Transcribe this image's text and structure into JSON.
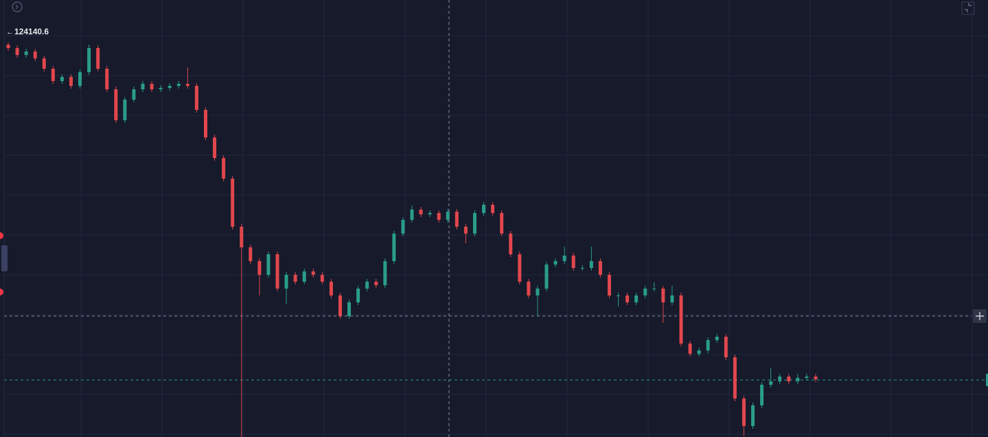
{
  "chart_data": {
    "type": "candlestick",
    "open": [
      124131,
      124116,
      124086,
      124101,
      124071,
      124026,
      123972,
      123990,
      123951,
      124011,
      124116,
      124026,
      123936,
      123801,
      123891,
      123936,
      123960,
      123936,
      123942,
      123951,
      123960,
      123951,
      123846,
      123726,
      123636,
      123546,
      123336,
      123246,
      123186,
      123126,
      123216,
      123066,
      123126,
      123096,
      123141,
      123126,
      123096,
      123036,
      122946,
      123006,
      123066,
      123096,
      123081,
      123186,
      123306,
      123366,
      123411,
      123390,
      123396,
      123366,
      123402,
      123336,
      123306,
      123396,
      123432,
      123396,
      123306,
      123216,
      123096,
      123036,
      123066,
      123171,
      123186,
      123210,
      123156,
      123156,
      123186,
      123126,
      123036,
      123036,
      123006,
      123036,
      123066,
      123066,
      123006,
      123036,
      122826,
      122781,
      122796,
      122841,
      122856,
      122766,
      122586,
      122466,
      122556,
      122646,
      122661,
      122682,
      122661,
      122676,
      122682
    ],
    "high": [
      124140.6,
      124128,
      124113,
      124113,
      124083,
      124038,
      124002,
      124002,
      124023,
      124131,
      124128,
      124038,
      123948,
      123903,
      123948,
      123972,
      123972,
      123954,
      123963,
      123972,
      124032,
      123963,
      123858,
      123738,
      123648,
      123558,
      123348,
      123258,
      123198,
      123228,
      123228,
      123138,
      123138,
      123153,
      123153,
      123138,
      123108,
      123048,
      123018,
      123078,
      123108,
      123108,
      123198,
      123318,
      123378,
      123429,
      123423,
      123408,
      123408,
      123414,
      123414,
      123348,
      123408,
      123444,
      123444,
      123408,
      123318,
      123228,
      123108,
      123078,
      123183,
      123198,
      123249,
      123222,
      123168,
      123249,
      123198,
      123138,
      123048,
      123048,
      123048,
      123078,
      123093,
      123078,
      123078,
      123048,
      122838,
      122808,
      122853,
      122868,
      122868,
      122778,
      122598,
      122568,
      122658,
      122721,
      122694,
      122694,
      122694,
      122694,
      122694
    ],
    "low": [
      124104,
      124074,
      124074,
      124059,
      124014,
      123960,
      123960,
      123939,
      123939,
      123999,
      124014,
      123924,
      123789,
      123789,
      123879,
      123924,
      123924,
      123924,
      123930,
      123939,
      123939,
      123834,
      123714,
      123624,
      123534,
      123324,
      122418,
      123174,
      123036,
      123114,
      123054,
      123000,
      123084,
      123084,
      123114,
      123084,
      123024,
      122934,
      122934,
      122994,
      123054,
      123069,
      123069,
      123174,
      123294,
      123354,
      123378,
      123378,
      123354,
      123354,
      123324,
      123264,
      123294,
      123384,
      123384,
      123294,
      123204,
      123084,
      123024,
      122946,
      123054,
      123159,
      123174,
      123144,
      123144,
      123144,
      123114,
      123024,
      122988,
      122994,
      122994,
      123024,
      123054,
      122916,
      122994,
      122814,
      122769,
      122769,
      122784,
      122829,
      122754,
      122574,
      122421,
      122454,
      122544,
      122634,
      122649,
      122649,
      122649,
      122664,
      122658
    ],
    "close": [
      124116,
      124086,
      124101,
      124071,
      124026,
      123972,
      123990,
      123951,
      124011,
      124116,
      124026,
      123936,
      123801,
      123891,
      123936,
      123960,
      123936,
      123942,
      123951,
      123960,
      123951,
      123846,
      123726,
      123636,
      123546,
      123336,
      123246,
      123186,
      123126,
      123216,
      123066,
      123126,
      123096,
      123141,
      123126,
      123096,
      123036,
      122946,
      123006,
      123066,
      123096,
      123081,
      123186,
      123306,
      123366,
      123411,
      123390,
      123396,
      123366,
      123402,
      123336,
      123306,
      123396,
      123432,
      123396,
      123306,
      123216,
      123096,
      123036,
      123066,
      123171,
      123186,
      123210,
      123156,
      123156,
      123186,
      123126,
      123036,
      123036,
      123006,
      123036,
      123066,
      123066,
      123006,
      123036,
      122826,
      122781,
      122796,
      122841,
      122856,
      122766,
      122586,
      122466,
      122556,
      122646,
      122661,
      122682,
      122661,
      122676,
      122682,
      122670
    ],
    "up_color": "#2a9d8a",
    "down_color": "#e0474c",
    "ylim": [
      122418,
      124326
    ]
  }
}
